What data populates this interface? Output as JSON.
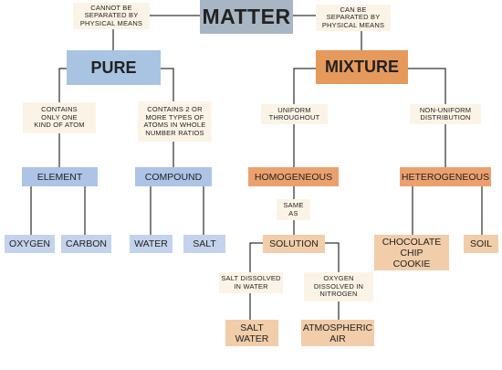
{
  "root": {
    "label": "MATTER"
  },
  "edge_notes": {
    "pure": "CANNOT BE\nSEPARATED BY\nPHYSICAL MEANS",
    "mixture": "CAN BE\nSEPARATED BY\nPHYSICAL MEANS",
    "element": "CONTAINS\nONLY ONE\nKIND OF ATOM",
    "compound": "CONTAINS 2 OR\nMORE TYPES OF\nATOMS IN WHOLE\nNUMBER RATIOS",
    "homogeneous": "UNIFORM\nTHROUGHOUT",
    "heterogeneous": "NON-UNIFORM\nDISTRIBUTION",
    "solution": "SAME\nAS",
    "salt_water": "SALT DISSOLVED\nIN WATER",
    "atmospheric_air": "OXYGEN\nDISSOLVED IN\nNITROGEN"
  },
  "categories": {
    "pure": "PURE",
    "mixture": "MIXTURE"
  },
  "types": {
    "element": "ELEMENT",
    "compound": "COMPOUND",
    "homogeneous": "HOMOGENEOUS",
    "heterogeneous": "HETEROGENEOUS",
    "solution": "SOLUTION"
  },
  "examples": {
    "oxygen": "OXYGEN",
    "carbon": "CARBON",
    "water": "WATER",
    "salt": "SALT",
    "cookie": "CHOCOLATE\nCHIP\nCOOKIE",
    "soil": "SOIL",
    "salt_water": "SALT\nWATER",
    "atmospheric_air": "ATMOSPHERIC\nAIR"
  },
  "colors": {
    "root": "#a8b6c3",
    "pure": "#a8c4e2",
    "mixture": "#e59a5c",
    "pure_types": "#adc4e6",
    "pure_examples": "#c3d3eb",
    "mixture_types": "#eba16e",
    "mixture_examples": "#f1cda9",
    "notes": "#fbf4e6",
    "lines": "#000000"
  }
}
